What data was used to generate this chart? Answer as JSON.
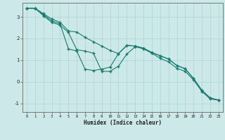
{
  "xlabel": "Humidex (Indice chaleur)",
  "bg_color": "#cce8e8",
  "grid_color": "#aad4d4",
  "line_color": "#1a7a6e",
  "xlim": [
    -0.5,
    23.5
  ],
  "ylim": [
    -1.4,
    3.65
  ],
  "xticks": [
    0,
    1,
    2,
    3,
    4,
    5,
    6,
    7,
    8,
    9,
    10,
    11,
    12,
    13,
    14,
    15,
    16,
    17,
    18,
    19,
    20,
    21,
    22,
    23
  ],
  "yticks": [
    -1,
    0,
    1,
    2,
    3
  ],
  "line1_x": [
    0,
    1,
    2,
    3,
    4,
    5,
    6,
    7,
    8,
    9,
    10,
    11,
    12,
    13,
    14,
    15,
    16,
    17,
    18,
    19,
    20,
    21,
    22,
    23
  ],
  "line1_y": [
    3.4,
    3.4,
    3.15,
    2.9,
    2.75,
    2.35,
    2.3,
    2.05,
    1.85,
    1.65,
    1.45,
    1.3,
    1.68,
    1.65,
    1.55,
    1.35,
    1.2,
    1.05,
    0.75,
    0.6,
    0.15,
    -0.4,
    -0.75,
    -0.85
  ],
  "line2_x": [
    0,
    1,
    2,
    3,
    4,
    5,
    6,
    7,
    8,
    9,
    10,
    11,
    12,
    13,
    14,
    15,
    16,
    17,
    18,
    19,
    20,
    21,
    22,
    23
  ],
  "line2_y": [
    3.4,
    3.4,
    3.1,
    2.82,
    2.68,
    1.52,
    1.42,
    0.58,
    0.52,
    0.58,
    0.68,
    1.3,
    1.68,
    1.65,
    1.55,
    1.35,
    1.2,
    1.05,
    0.75,
    0.6,
    0.15,
    -0.4,
    -0.75,
    -0.85
  ],
  "line3_x": [
    0,
    1,
    2,
    3,
    4,
    5,
    6,
    7,
    8,
    9,
    10,
    11,
    12,
    13,
    14,
    15,
    16,
    17,
    18,
    19,
    20,
    21,
    22,
    23
  ],
  "line3_y": [
    3.4,
    3.4,
    3.05,
    2.75,
    2.62,
    2.28,
    1.48,
    1.42,
    1.32,
    0.48,
    0.48,
    0.72,
    1.28,
    1.62,
    1.52,
    1.32,
    1.08,
    0.92,
    0.62,
    0.48,
    0.08,
    -0.45,
    -0.8,
    -0.85
  ]
}
